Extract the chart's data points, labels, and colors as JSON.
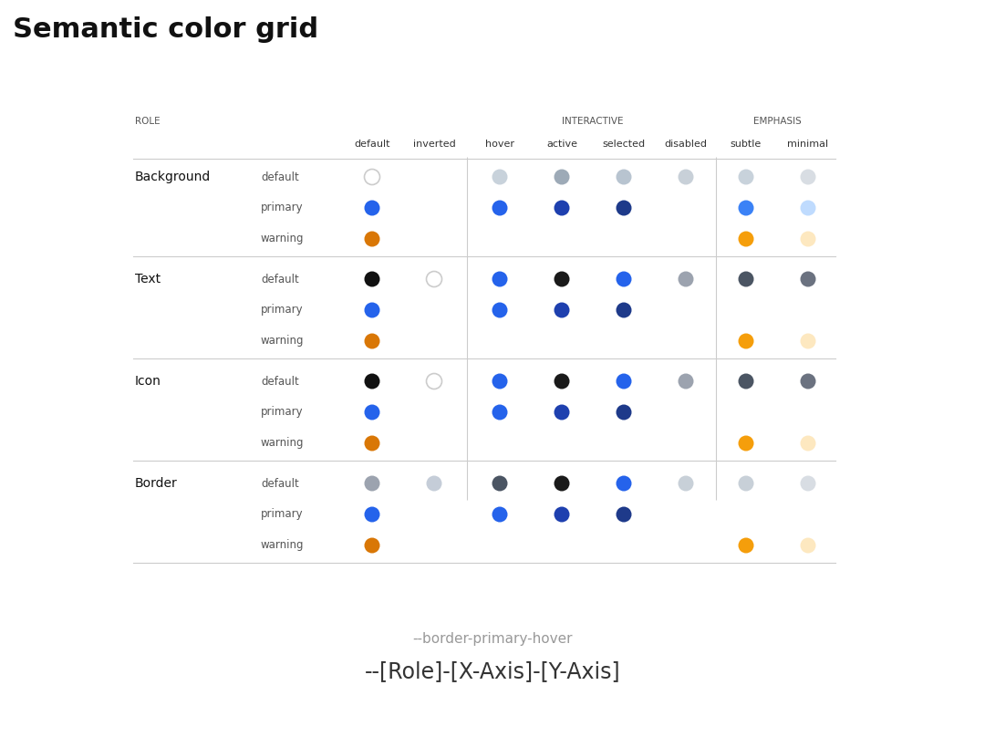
{
  "title": "Semantic color grid",
  "title_fontsize": 22,
  "title_fontweight": "bold",
  "bg_color": "#ffffff",
  "subtitle_example": "--border-primary-hover",
  "subtitle_template": "--[Role]-[X-Axis]-[Y-Axis]",
  "role_groups": [
    "Background",
    "Text",
    "Icon",
    "Border"
  ],
  "sub_rows": [
    "default",
    "primary",
    "warning"
  ],
  "col_labels": [
    "default",
    "inverted",
    "hover",
    "active",
    "selected",
    "disabled",
    "subtle",
    "minimal"
  ],
  "dots": {
    "Background": {
      "default": {
        "default": {
          "color": "#ffffff",
          "outline": "#cccccc",
          "filled": false
        },
        "inverted": null,
        "hover": {
          "color": "#c8d2db",
          "filled": true
        },
        "active": {
          "color": "#9daab7",
          "filled": true
        },
        "selected": {
          "color": "#b8c4d0",
          "filled": true
        },
        "disabled": {
          "color": "#c8d0d8",
          "filled": true
        },
        "subtle": {
          "color": "#c8d2db",
          "filled": true
        },
        "minimal": {
          "color": "#d8dde3",
          "filled": true
        }
      },
      "primary": {
        "default": {
          "color": "#2563eb",
          "filled": true
        },
        "inverted": null,
        "hover": {
          "color": "#2563eb",
          "filled": true
        },
        "active": {
          "color": "#1e40af",
          "filled": true
        },
        "selected": {
          "color": "#1e3a8a",
          "filled": true
        },
        "disabled": null,
        "subtle": {
          "color": "#3b82f6",
          "filled": true
        },
        "minimal": {
          "color": "#bfdbfe",
          "filled": true
        }
      },
      "warning": {
        "default": {
          "color": "#d97706",
          "filled": true
        },
        "inverted": null,
        "hover": null,
        "active": null,
        "selected": null,
        "disabled": null,
        "subtle": {
          "color": "#f59e0b",
          "filled": true
        },
        "minimal": {
          "color": "#fde8c0",
          "filled": true
        }
      }
    },
    "Text": {
      "default": {
        "default": {
          "color": "#111111",
          "filled": true
        },
        "inverted": {
          "color": "#ffffff",
          "outline": "#cccccc",
          "filled": false
        },
        "hover": {
          "color": "#2563eb",
          "filled": true
        },
        "active": {
          "color": "#1a1a1a",
          "filled": true
        },
        "selected": {
          "color": "#2563eb",
          "filled": true
        },
        "disabled": {
          "color": "#9ca3af",
          "filled": true
        },
        "subtle": {
          "color": "#4b5563",
          "filled": true
        },
        "minimal": {
          "color": "#6b7280",
          "filled": true
        }
      },
      "primary": {
        "default": {
          "color": "#2563eb",
          "filled": true
        },
        "inverted": null,
        "hover": {
          "color": "#2563eb",
          "filled": true
        },
        "active": {
          "color": "#1e40af",
          "filled": true
        },
        "selected": {
          "color": "#1e3a8a",
          "filled": true
        },
        "disabled": null,
        "subtle": null,
        "minimal": null
      },
      "warning": {
        "default": {
          "color": "#d97706",
          "filled": true
        },
        "inverted": null,
        "hover": null,
        "active": null,
        "selected": null,
        "disabled": null,
        "subtle": {
          "color": "#f59e0b",
          "filled": true
        },
        "minimal": {
          "color": "#fde8c0",
          "filled": true
        }
      }
    },
    "Icon": {
      "default": {
        "default": {
          "color": "#111111",
          "filled": true
        },
        "inverted": {
          "color": "#ffffff",
          "outline": "#cccccc",
          "filled": false
        },
        "hover": {
          "color": "#2563eb",
          "filled": true
        },
        "active": {
          "color": "#1a1a1a",
          "filled": true
        },
        "selected": {
          "color": "#2563eb",
          "filled": true
        },
        "disabled": {
          "color": "#9ca3af",
          "filled": true
        },
        "subtle": {
          "color": "#4b5563",
          "filled": true
        },
        "minimal": {
          "color": "#6b7280",
          "filled": true
        }
      },
      "primary": {
        "default": {
          "color": "#2563eb",
          "filled": true
        },
        "inverted": null,
        "hover": {
          "color": "#2563eb",
          "filled": true
        },
        "active": {
          "color": "#1e40af",
          "filled": true
        },
        "selected": {
          "color": "#1e3a8a",
          "filled": true
        },
        "disabled": null,
        "subtle": null,
        "minimal": null
      },
      "warning": {
        "default": {
          "color": "#d97706",
          "filled": true
        },
        "inverted": null,
        "hover": null,
        "active": null,
        "selected": null,
        "disabled": null,
        "subtle": {
          "color": "#f59e0b",
          "filled": true
        },
        "minimal": {
          "color": "#fde8c0",
          "filled": true
        }
      }
    },
    "Border": {
      "default": {
        "default": {
          "color": "#9ca3af",
          "filled": true
        },
        "inverted": {
          "color": "#c5cdd8",
          "filled": true
        },
        "hover": {
          "color": "#4b5563",
          "filled": true
        },
        "active": {
          "color": "#1a1a1a",
          "filled": true
        },
        "selected": {
          "color": "#2563eb",
          "filled": true
        },
        "disabled": {
          "color": "#c8d0d8",
          "filled": true
        },
        "subtle": {
          "color": "#c8d0d8",
          "filled": true
        },
        "minimal": {
          "color": "#d8dde3",
          "filled": true
        }
      },
      "primary": {
        "default": {
          "color": "#2563eb",
          "filled": true
        },
        "inverted": null,
        "hover": {
          "color": "#2563eb",
          "filled": true
        },
        "active": {
          "color": "#1e40af",
          "filled": true
        },
        "selected": {
          "color": "#1e3a8a",
          "filled": true
        },
        "disabled": null,
        "subtle": null,
        "minimal": null
      },
      "warning": {
        "default": {
          "color": "#d97706",
          "filled": true
        },
        "inverted": null,
        "hover": null,
        "active": null,
        "selected": null,
        "disabled": null,
        "subtle": {
          "color": "#f59e0b",
          "filled": true
        },
        "minimal": {
          "color": "#fde8c0",
          "filled": true
        }
      }
    }
  }
}
